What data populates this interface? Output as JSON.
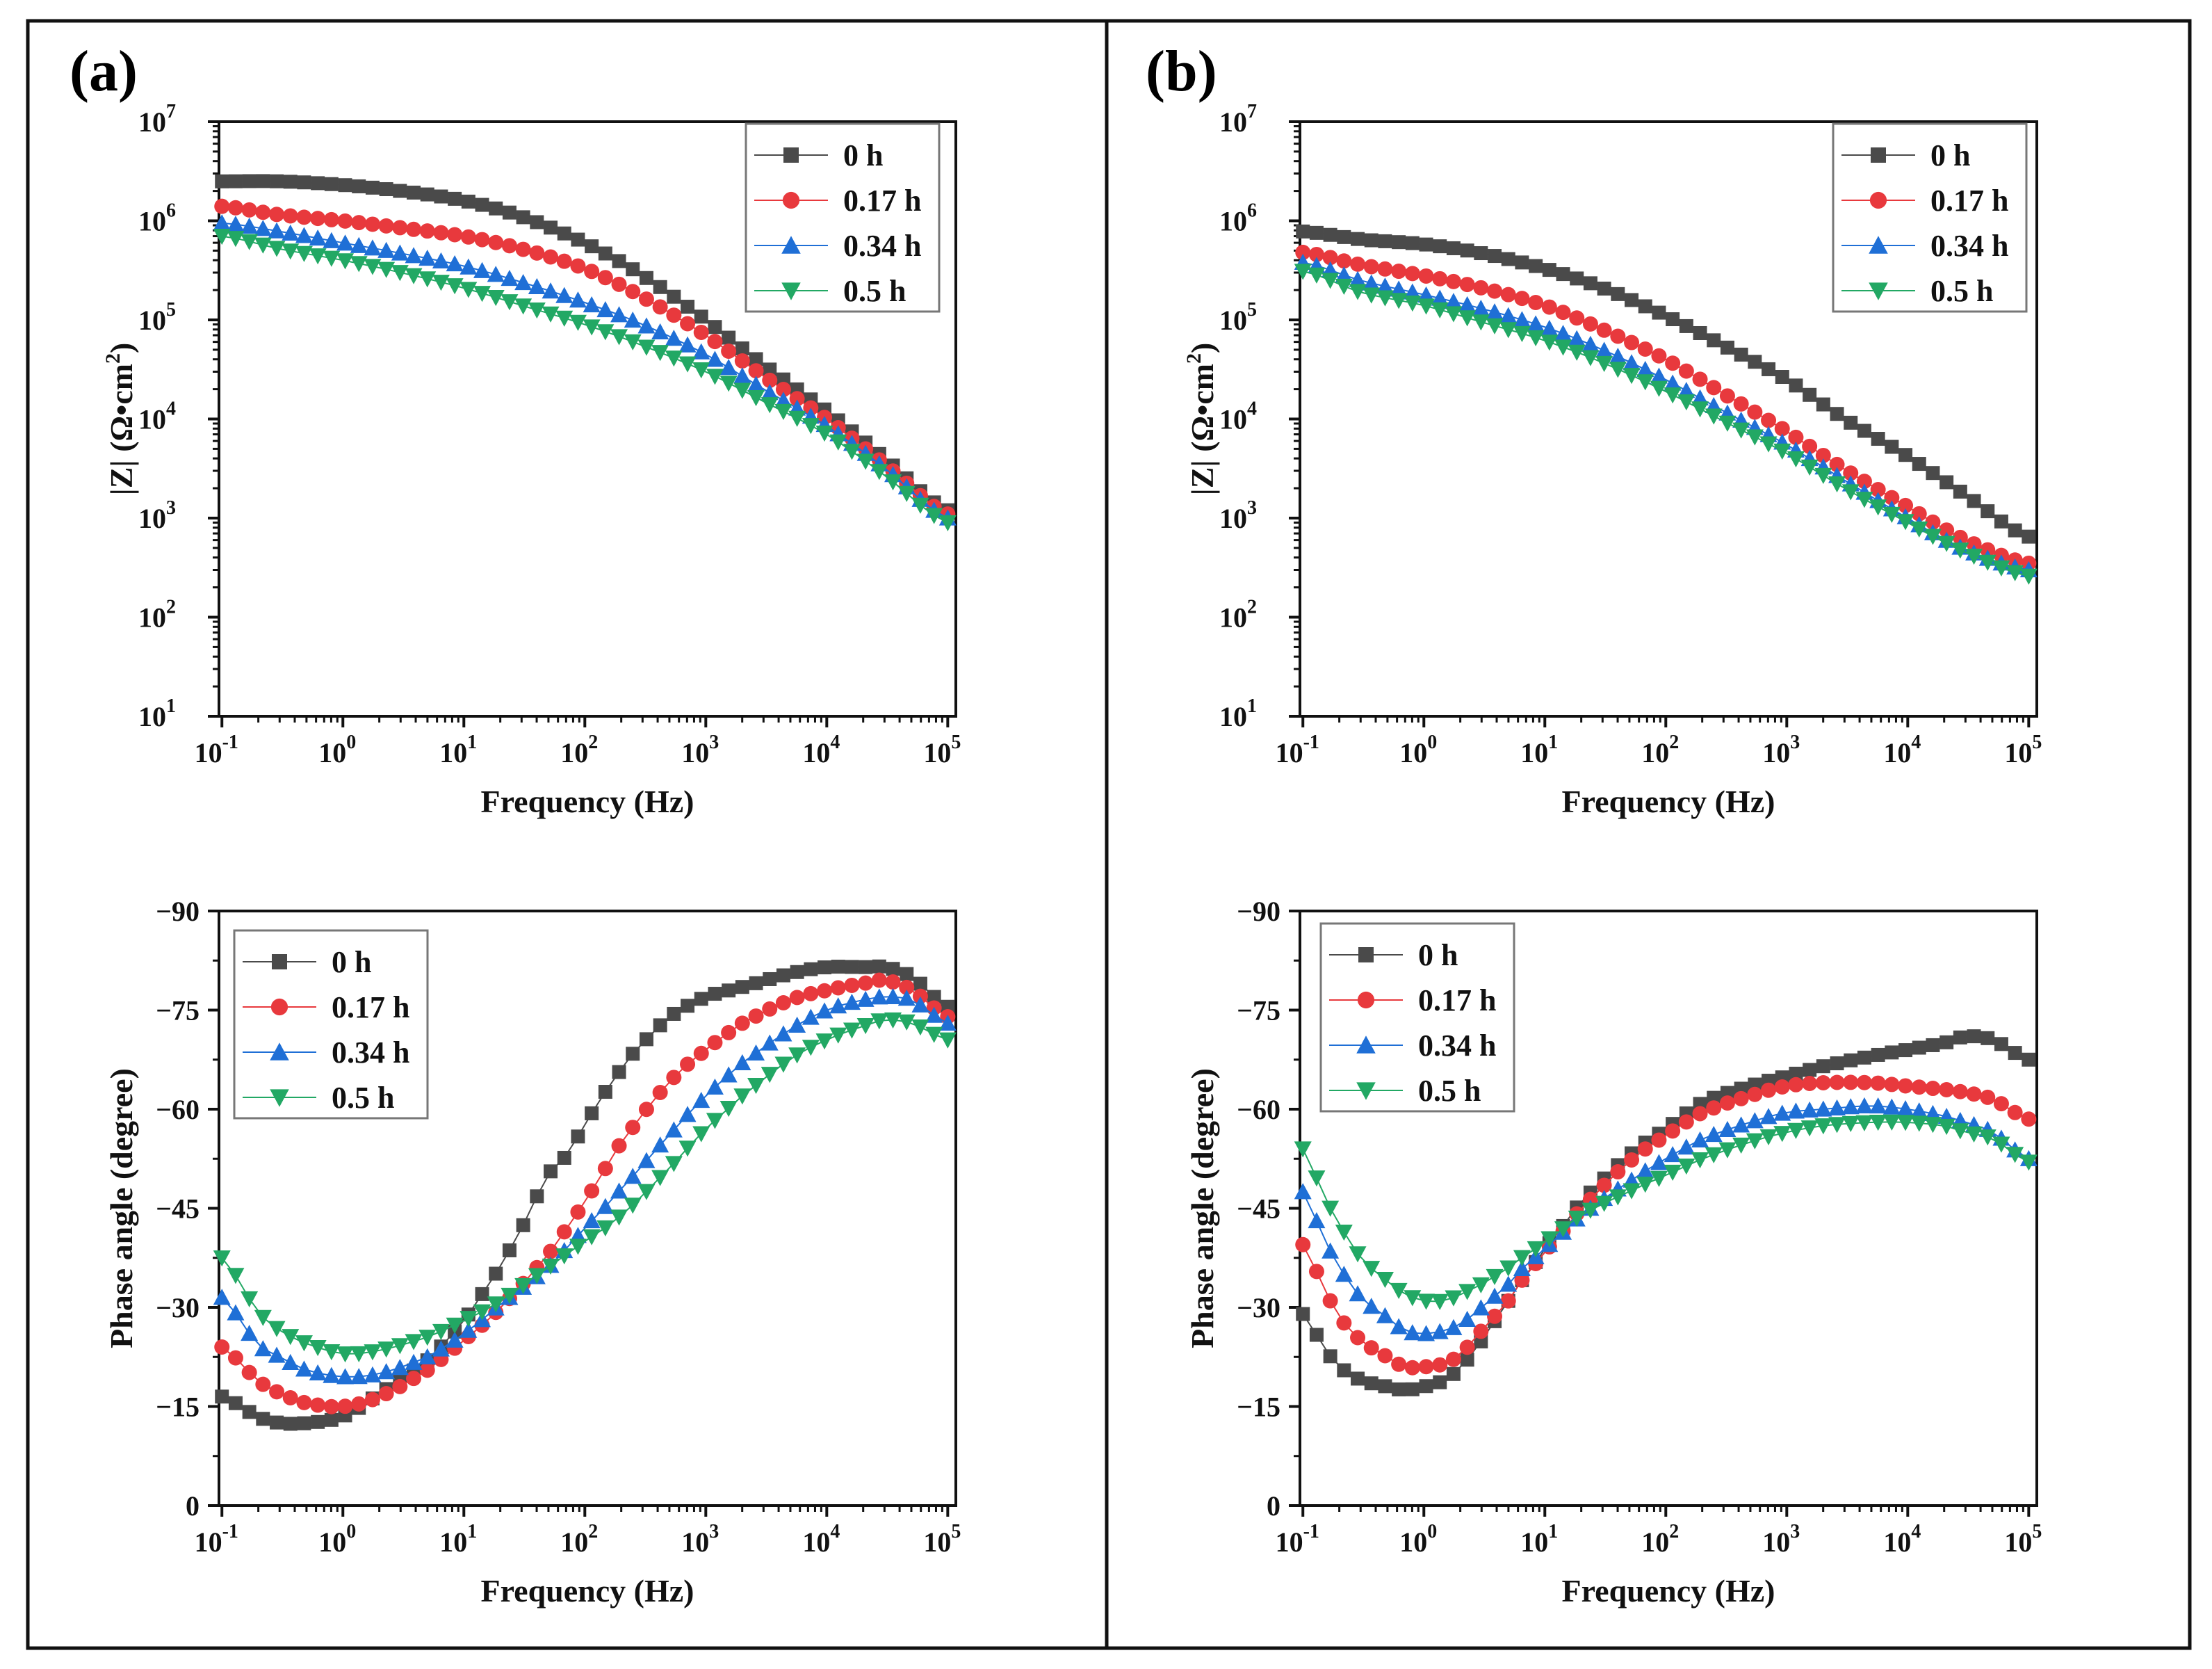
{
  "figure": {
    "panels": [
      {
        "label": "(a)"
      },
      {
        "label": "(b)"
      }
    ]
  },
  "colors": {
    "0 h": "#4a4a4a",
    "0.17 h": "#e8393d",
    "0.34 h": "#1f6fd6",
    "0.5 h": "#22a864"
  },
  "chart_data": [
    {
      "id": "a-bode-modulus",
      "type": "scatter",
      "panel": "(a)",
      "xlabel": "Frequency (Hz)",
      "ylabel": "|Z| (Ω•cm2)",
      "xscale": "log",
      "yscale": "log",
      "xlim": [
        0.1,
        100000
      ],
      "ylim": [
        10,
        10000000
      ],
      "xticks": [
        {
          "base": "10",
          "exp": "-1"
        },
        {
          "base": "10",
          "exp": "0"
        },
        {
          "base": "10",
          "exp": "1"
        },
        {
          "base": "10",
          "exp": "2"
        },
        {
          "base": "10",
          "exp": "3"
        },
        {
          "base": "10",
          "exp": "4"
        },
        {
          "base": "10",
          "exp": "5"
        }
      ],
      "yticks": [
        {
          "base": "10",
          "exp": "1"
        },
        {
          "base": "10",
          "exp": "2"
        },
        {
          "base": "10",
          "exp": "3"
        },
        {
          "base": "10",
          "exp": "4"
        },
        {
          "base": "10",
          "exp": "5"
        },
        {
          "base": "10",
          "exp": "6"
        },
        {
          "base": "10",
          "exp": "7"
        }
      ],
      "legend": "top-right",
      "series": [
        {
          "name": "0 h",
          "marker": "square",
          "x": [
            0.1,
            0.3,
            1,
            3,
            10,
            30,
            100,
            300,
            1000,
            3000,
            10000,
            30000,
            100000
          ],
          "y": [
            2500000,
            2500000,
            2300000,
            2000000,
            1600000,
            1100000,
            600000,
            280000,
            100000,
            35000,
            12000,
            4000,
            1200
          ]
        },
        {
          "name": "0.17 h",
          "marker": "circle",
          "x": [
            0.1,
            0.3,
            1,
            3,
            10,
            30,
            100,
            300,
            1000,
            3000,
            10000,
            30000,
            100000
          ],
          "y": [
            1400000,
            1150000,
            1000000,
            850000,
            700000,
            520000,
            330000,
            170000,
            70000,
            27000,
            10000,
            3500,
            1100
          ]
        },
        {
          "name": "0.34 h",
          "marker": "triangle-up",
          "x": [
            0.1,
            0.3,
            1,
            3,
            10,
            30,
            100,
            300,
            1000,
            3000,
            10000,
            30000,
            100000
          ],
          "y": [
            950000,
            780000,
            600000,
            470000,
            350000,
            240000,
            150000,
            90000,
            45000,
            20000,
            8500,
            3200,
            1000
          ]
        },
        {
          "name": "0.5 h",
          "marker": "triangle-down",
          "x": [
            0.1,
            0.3,
            1,
            3,
            10,
            30,
            100,
            300,
            1000,
            3000,
            10000,
            30000,
            100000
          ],
          "y": [
            700000,
            520000,
            400000,
            300000,
            210000,
            140000,
            90000,
            55000,
            30000,
            15000,
            7000,
            2700,
            900
          ]
        }
      ]
    },
    {
      "id": "a-bode-phase",
      "type": "scatter",
      "panel": "(a)",
      "xlabel": "Frequency (Hz)",
      "ylabel": "Phase angle (degree)",
      "xscale": "log",
      "yscale": "linear",
      "xlim": [
        0.1,
        100000
      ],
      "ylim": [
        0,
        -90
      ],
      "xticks": [
        {
          "base": "10",
          "exp": "-1"
        },
        {
          "base": "10",
          "exp": "0"
        },
        {
          "base": "10",
          "exp": "1"
        },
        {
          "base": "10",
          "exp": "2"
        },
        {
          "base": "10",
          "exp": "3"
        },
        {
          "base": "10",
          "exp": "4"
        },
        {
          "base": "10",
          "exp": "5"
        }
      ],
      "yticks": [
        "0",
        "−15",
        "−30",
        "−45",
        "−60",
        "−75",
        "−90"
      ],
      "legend": "top-left",
      "series": [
        {
          "name": "0 h",
          "marker": "square",
          "x": [
            0.1,
            0.2,
            0.3,
            0.5,
            1,
            2,
            5,
            10,
            20,
            30,
            50,
            70,
            100,
            200,
            300,
            500,
            1000,
            2000,
            5000,
            10000,
            20000,
            30000,
            50000,
            100000
          ],
          "y": [
            -16.5,
            -13.5,
            -12.5,
            -12.5,
            -13.5,
            -17,
            -22,
            -28,
            -36,
            -42,
            -50,
            -53,
            -58,
            -66,
            -70,
            -74,
            -77,
            -78.5,
            -80.5,
            -81.5,
            -81.5,
            -81.5,
            -80,
            -75.5
          ]
        },
        {
          "name": "0.17 h",
          "marker": "circle",
          "x": [
            0.1,
            0.2,
            0.3,
            0.5,
            1,
            2,
            5,
            10,
            20,
            50,
            100,
            200,
            500,
            1000,
            2000,
            5000,
            10000,
            20000,
            30000,
            50000,
            100000
          ],
          "y": [
            -24,
            -19,
            -17,
            -15.5,
            -15,
            -16.5,
            -20.5,
            -25,
            -30,
            -38,
            -46,
            -55,
            -64,
            -69,
            -73,
            -76.5,
            -78,
            -79,
            -79.5,
            -78,
            -74
          ]
        },
        {
          "name": "0.34 h",
          "marker": "triangle-up",
          "x": [
            0.1,
            0.2,
            0.3,
            0.5,
            1,
            2,
            5,
            10,
            20,
            50,
            100,
            200,
            500,
            1000,
            2000,
            5000,
            10000,
            20000,
            30000,
            50000,
            100000
          ],
          "y": [
            -31.5,
            -24.5,
            -22.5,
            -20.5,
            -19.5,
            -20,
            -22.5,
            -26,
            -30.5,
            -36,
            -42,
            -48,
            -56,
            -62,
            -67,
            -72,
            -75,
            -76.5,
            -77,
            -76.5,
            -73
          ]
        },
        {
          "name": "0.5 h",
          "marker": "triangle-down",
          "x": [
            0.1,
            0.2,
            0.3,
            0.5,
            1,
            2,
            5,
            10,
            20,
            50,
            100,
            200,
            500,
            1000,
            2000,
            5000,
            10000,
            20000,
            30000,
            50000,
            100000
          ],
          "y": [
            -37.5,
            -29.5,
            -26.5,
            -24.5,
            -23,
            -23.5,
            -25.5,
            -28,
            -31,
            -36,
            -40,
            -44,
            -51,
            -57,
            -62,
            -67.5,
            -70.5,
            -72.5,
            -73.5,
            -73,
            -70.5
          ]
        }
      ]
    },
    {
      "id": "b-bode-modulus",
      "type": "scatter",
      "panel": "(b)",
      "xlabel": "Frequency (Hz)",
      "ylabel": "|Z| (Ω•cm2)",
      "xscale": "log",
      "yscale": "log",
      "xlim": [
        0.1,
        100000
      ],
      "ylim": [
        10,
        10000000
      ],
      "xticks": [
        {
          "base": "10",
          "exp": "-1"
        },
        {
          "base": "10",
          "exp": "0"
        },
        {
          "base": "10",
          "exp": "1"
        },
        {
          "base": "10",
          "exp": "2"
        },
        {
          "base": "10",
          "exp": "3"
        },
        {
          "base": "10",
          "exp": "4"
        },
        {
          "base": "10",
          "exp": "5"
        }
      ],
      "yticks": [
        {
          "base": "10",
          "exp": "1"
        },
        {
          "base": "10",
          "exp": "2"
        },
        {
          "base": "10",
          "exp": "3"
        },
        {
          "base": "10",
          "exp": "4"
        },
        {
          "base": "10",
          "exp": "5"
        },
        {
          "base": "10",
          "exp": "6"
        },
        {
          "base": "10",
          "exp": "7"
        }
      ],
      "legend": "top-right",
      "series": [
        {
          "name": "0 h",
          "marker": "square",
          "x": [
            0.1,
            0.3,
            1,
            3,
            10,
            30,
            100,
            300,
            1000,
            3000,
            10000,
            30000,
            100000
          ],
          "y": [
            780000,
            650000,
            580000,
            470000,
            330000,
            210000,
            110000,
            55000,
            25000,
            10000,
            4200,
            1700,
            650
          ]
        },
        {
          "name": "0.17 h",
          "marker": "circle",
          "x": [
            0.1,
            0.3,
            1,
            3,
            10,
            30,
            100,
            300,
            1000,
            3000,
            10000,
            30000,
            100000
          ],
          "y": [
            480000,
            360000,
            280000,
            210000,
            140000,
            80000,
            40000,
            18000,
            7500,
            3100,
            1300,
            600,
            350
          ]
        },
        {
          "name": "0.34 h",
          "marker": "triangle-up",
          "x": [
            0.1,
            0.3,
            1,
            3,
            10,
            30,
            100,
            300,
            1000,
            3000,
            10000,
            30000,
            100000
          ],
          "y": [
            380000,
            250000,
            180000,
            130000,
            85000,
            50000,
            25000,
            12000,
            5500,
            2400,
            1000,
            480,
            300
          ]
        },
        {
          "name": "0.5 h",
          "marker": "triangle-down",
          "x": [
            0.1,
            0.3,
            1,
            3,
            10,
            30,
            100,
            300,
            1000,
            3000,
            10000,
            30000,
            100000
          ],
          "y": [
            310000,
            190000,
            140000,
            95000,
            62000,
            37000,
            19000,
            9500,
            4500,
            2000,
            900,
            450,
            260
          ]
        }
      ]
    },
    {
      "id": "b-bode-phase",
      "type": "scatter",
      "panel": "(b)",
      "xlabel": "Frequency (Hz)",
      "ylabel": "Phase angle (degree)",
      "xscale": "log",
      "yscale": "linear",
      "xlim": [
        0.1,
        100000
      ],
      "ylim": [
        0,
        -90
      ],
      "xticks": [
        {
          "base": "10",
          "exp": "-1"
        },
        {
          "base": "10",
          "exp": "0"
        },
        {
          "base": "10",
          "exp": "1"
        },
        {
          "base": "10",
          "exp": "2"
        },
        {
          "base": "10",
          "exp": "3"
        },
        {
          "base": "10",
          "exp": "4"
        },
        {
          "base": "10",
          "exp": "5"
        }
      ],
      "yticks": [
        "0",
        "−15",
        "−30",
        "−45",
        "−60",
        "−75",
        "−90"
      ],
      "legend": "top-left",
      "series": [
        {
          "name": "0 h",
          "marker": "square",
          "x": [
            0.1,
            0.15,
            0.2,
            0.3,
            0.5,
            0.7,
            1,
            1.5,
            2,
            3,
            5,
            7,
            10,
            20,
            50,
            100,
            200,
            500,
            1000,
            2000,
            5000,
            10000,
            20000,
            30000,
            50000,
            100000
          ],
          "y": [
            -29,
            -24,
            -21,
            -19,
            -18,
            -17.5,
            -18,
            -19,
            -21,
            -25,
            -31,
            -35,
            -39,
            -46,
            -53,
            -57,
            -61,
            -63.5,
            -65,
            -66.5,
            -68,
            -69,
            -70,
            -71,
            -70.5,
            -67.5
          ]
        },
        {
          "name": "0.17 h",
          "marker": "circle",
          "x": [
            0.1,
            0.15,
            0.2,
            0.3,
            0.5,
            0.7,
            1,
            1.5,
            2,
            3,
            5,
            7,
            10,
            20,
            50,
            100,
            200,
            500,
            1000,
            2000,
            5000,
            10000,
            20000,
            30000,
            50000,
            100000
          ],
          "y": [
            -39.5,
            -33,
            -28.5,
            -25,
            -22.5,
            -21,
            -21,
            -21.5,
            -23,
            -26.5,
            -31,
            -35,
            -38.5,
            -45,
            -52,
            -56,
            -59.5,
            -62,
            -63.5,
            -64,
            -64,
            -63.5,
            -63,
            -62.5,
            -61.5,
            -58.5
          ]
        },
        {
          "name": "0.34 h",
          "marker": "triangle-up",
          "x": [
            0.1,
            0.15,
            0.2,
            0.3,
            0.5,
            0.7,
            1,
            1.5,
            2,
            3,
            5,
            7,
            10,
            20,
            50,
            100,
            200,
            500,
            1000,
            2000,
            5000,
            10000,
            20000,
            30000,
            50000,
            100000
          ],
          "y": [
            -47.5,
            -40.5,
            -36,
            -31.5,
            -28.5,
            -26.5,
            -26,
            -26.5,
            -27.5,
            -30,
            -33.5,
            -36.5,
            -39,
            -44,
            -49,
            -52.5,
            -55.5,
            -58,
            -59.5,
            -60,
            -60.5,
            -60,
            -59,
            -58,
            -56.5,
            -52.5
          ]
        },
        {
          "name": "0.5 h",
          "marker": "triangle-down",
          "x": [
            0.1,
            0.15,
            0.2,
            0.3,
            0.5,
            0.7,
            1,
            1.5,
            2,
            3,
            5,
            7,
            10,
            20,
            50,
            100,
            200,
            500,
            1000,
            2000,
            5000,
            10000,
            20000,
            30000,
            50000,
            100000
          ],
          "y": [
            -54,
            -47,
            -42.5,
            -37.5,
            -34,
            -32,
            -31,
            -31,
            -32,
            -33.5,
            -36,
            -38,
            -40,
            -44,
            -47.5,
            -50,
            -52.5,
            -55,
            -56.5,
            -57.5,
            -58,
            -58,
            -57.5,
            -56.5,
            -55.5,
            -52
          ]
        }
      ]
    }
  ]
}
